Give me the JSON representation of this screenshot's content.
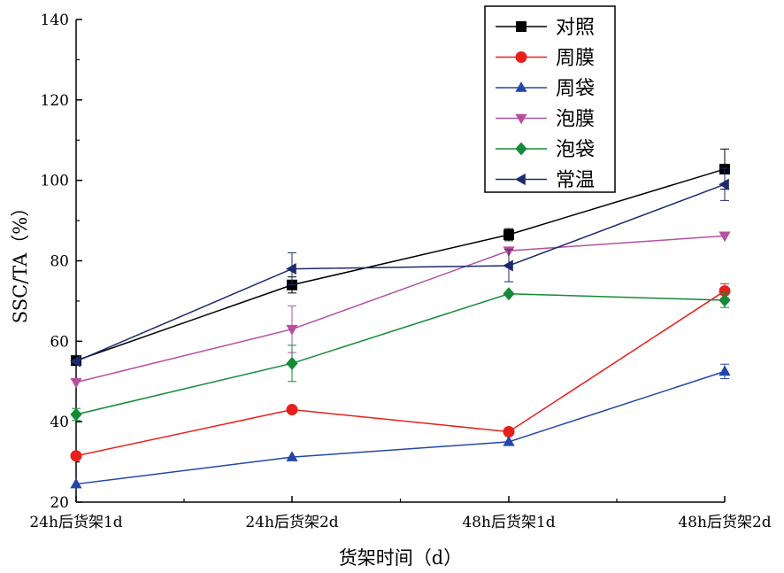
{
  "chart_data": {
    "type": "line",
    "xlabel": "货架时间（d）",
    "ylabel": "SSC/TA（%）",
    "categories": [
      "24h后货架1d",
      "24h后货架2d",
      "48h后货架1d",
      "48h后货架2d"
    ],
    "ylim": [
      20,
      140
    ],
    "yticks": [
      20,
      40,
      60,
      80,
      100,
      120,
      140
    ],
    "grid": false,
    "legend_position": "top-right",
    "series": [
      {
        "name": "对照",
        "color": "#000000",
        "marker": "square",
        "values": [
          55.2,
          74.0,
          86.5,
          102.8
        ],
        "error": [
          0,
          2.0,
          1.5,
          5.0
        ]
      },
      {
        "name": "周膜",
        "color": "#e8201c",
        "marker": "circle",
        "values": [
          31.5,
          43.0,
          37.5,
          72.5
        ],
        "error": [
          0,
          0,
          0,
          1.8
        ]
      },
      {
        "name": "周袋",
        "color": "#2347a8",
        "marker": "triangle-up",
        "values": [
          24.5,
          31.2,
          35.0,
          52.5
        ],
        "error": [
          0,
          0,
          0,
          1.8
        ]
      },
      {
        "name": "泡膜",
        "color": "#b5509f",
        "marker": "triangle-down",
        "values": [
          49.8,
          63.0,
          82.5,
          86.2
        ],
        "error": [
          0,
          5.8,
          0,
          0
        ]
      },
      {
        "name": "泡袋",
        "color": "#138a36",
        "marker": "diamond",
        "values": [
          41.8,
          54.5,
          71.8,
          70.2
        ],
        "error": [
          1.5,
          4.5,
          0,
          1.8
        ]
      },
      {
        "name": "常温",
        "color": "#1c2a6e",
        "marker": "triangle-left",
        "values": [
          55.0,
          78.0,
          78.8,
          99.0
        ],
        "error": [
          0,
          4.0,
          4.0,
          4.0
        ]
      }
    ]
  }
}
